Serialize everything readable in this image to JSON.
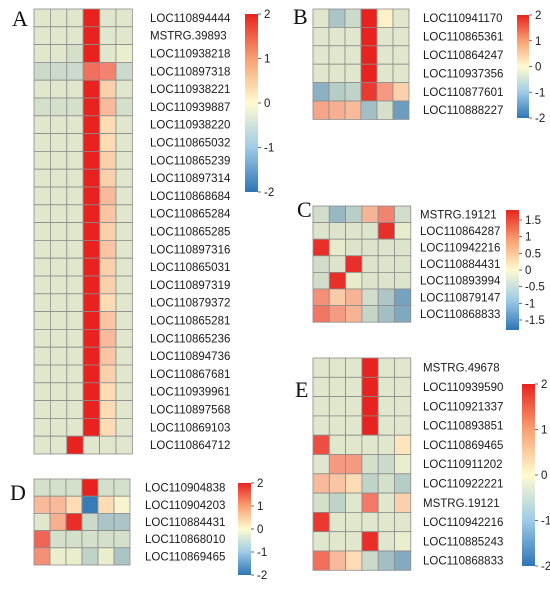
{
  "figure": {
    "type": "heatmap",
    "color_scale": {
      "low": "#2e75b6",
      "mid": "#fffbd0",
      "high": "#e8231f"
    }
  },
  "chart_data": [
    {
      "panel": "A",
      "type": "heatmap",
      "rows": [
        "LOC110894444",
        "MSTRG.39893",
        "LOC110938218",
        "LOC110897318",
        "LOC110938221",
        "LOC110939887",
        "LOC110938220",
        "LOC110865032",
        "LOC110865239",
        "LOC110897314",
        "LOC110868684",
        "LOC110865284",
        "LOC110865285",
        "LOC110897316",
        "LOC110865031",
        "LOC110897319",
        "LOC110879372",
        "LOC110865281",
        "LOC110865236",
        "LOC110894736",
        "LOC110867681",
        "LOC110939961",
        "LOC110897568",
        "LOC110869103",
        "LOC110864712"
      ],
      "values": [
        [
          -0.3,
          -0.3,
          -0.3,
          2.0,
          -0.3,
          -0.3
        ],
        [
          -0.3,
          -0.3,
          -0.3,
          2.0,
          -0.3,
          -0.3
        ],
        [
          -0.3,
          -0.3,
          -0.4,
          2.0,
          -0.3,
          -0.2
        ],
        [
          -0.5,
          -0.5,
          -0.5,
          1.3,
          1.1,
          -0.5
        ],
        [
          -0.3,
          -0.3,
          -0.3,
          2.0,
          0.4,
          -0.3
        ],
        [
          -0.4,
          -0.4,
          -0.4,
          2.0,
          0.6,
          -0.4
        ],
        [
          -0.3,
          -0.3,
          -0.3,
          2.0,
          0.3,
          -0.3
        ],
        [
          -0.3,
          -0.3,
          -0.3,
          2.0,
          0.3,
          -0.3
        ],
        [
          -0.3,
          -0.3,
          -0.3,
          2.0,
          0.4,
          -0.3
        ],
        [
          -0.3,
          -0.3,
          -0.3,
          2.0,
          0.4,
          -0.3
        ],
        [
          -0.3,
          -0.3,
          -0.3,
          2.0,
          0.6,
          -0.3
        ],
        [
          -0.3,
          -0.3,
          -0.3,
          2.0,
          0.5,
          -0.3
        ],
        [
          -0.3,
          -0.3,
          -0.3,
          2.0,
          0.4,
          -0.3
        ],
        [
          -0.3,
          -0.3,
          -0.3,
          2.0,
          0.5,
          -0.3
        ],
        [
          -0.3,
          -0.3,
          -0.3,
          2.0,
          0.4,
          -0.3
        ],
        [
          -0.3,
          -0.3,
          -0.3,
          2.0,
          0.4,
          -0.3
        ],
        [
          -0.3,
          -0.3,
          -0.3,
          2.0,
          0.3,
          -0.3
        ],
        [
          -0.3,
          -0.3,
          -0.3,
          2.0,
          0.5,
          -0.3
        ],
        [
          -0.3,
          -0.3,
          -0.3,
          2.0,
          0.6,
          -0.3
        ],
        [
          -0.3,
          -0.3,
          -0.3,
          2.0,
          0.5,
          -0.3
        ],
        [
          -0.3,
          -0.3,
          -0.3,
          2.0,
          0.4,
          -0.3
        ],
        [
          -0.3,
          -0.3,
          -0.3,
          2.0,
          0.3,
          -0.3
        ],
        [
          -0.3,
          -0.3,
          -0.3,
          2.0,
          0.3,
          -0.3
        ],
        [
          -0.3,
          -0.3,
          -0.3,
          2.0,
          0.3,
          -0.3
        ],
        [
          -0.3,
          -0.3,
          2.0,
          -0.3,
          -0.3,
          -0.3
        ]
      ],
      "legend": {
        "ticks": [
          2,
          1,
          0,
          -1,
          -2
        ],
        "range": [
          -2,
          2
        ]
      }
    },
    {
      "panel": "B",
      "type": "heatmap",
      "rows": [
        "LOC110941170",
        "LOC110865361",
        "LOC110864247",
        "LOC110937356",
        "LOC110877601",
        "LOC110888227"
      ],
      "values": [
        [
          -0.3,
          -0.8,
          -0.5,
          2.0,
          0.1,
          -0.3
        ],
        [
          -0.3,
          -0.3,
          -0.3,
          2.0,
          -0.3,
          -0.3
        ],
        [
          -0.3,
          -0.3,
          -0.3,
          2.0,
          -0.3,
          -0.3
        ],
        [
          -0.3,
          -0.3,
          -0.3,
          2.0,
          -0.3,
          -0.3
        ],
        [
          -1.1,
          -0.7,
          -0.6,
          1.8,
          0.9,
          0.4
        ],
        [
          0.8,
          0.7,
          0.6,
          -0.9,
          -0.4,
          -1.4
        ]
      ],
      "legend": {
        "ticks": [
          2,
          1,
          0,
          -1,
          -2
        ],
        "range": [
          -2,
          2
        ]
      }
    },
    {
      "panel": "C",
      "type": "heatmap",
      "rows": [
        "MSTRG.19121",
        "LOC110864287",
        "LOC110942216",
        "LOC110884431",
        "LOC110893994",
        "LOC110879147",
        "LOC110868833"
      ],
      "values": [
        [
          -0.4,
          -0.9,
          -0.6,
          0.6,
          1.0,
          -0.4
        ],
        [
          -0.3,
          -0.3,
          -0.3,
          -0.3,
          1.7,
          -0.2
        ],
        [
          1.7,
          -0.2,
          -0.3,
          -0.3,
          -0.3,
          -0.3
        ],
        [
          -0.4,
          -0.3,
          1.7,
          -0.3,
          -0.3,
          -0.3
        ],
        [
          -0.4,
          1.7,
          -0.2,
          -0.3,
          -0.3,
          -0.3
        ],
        [
          0.9,
          0.4,
          0.6,
          -0.4,
          -0.7,
          -1.2
        ],
        [
          1.1,
          0.8,
          0.6,
          -0.5,
          -0.8,
          -1.1
        ]
      ],
      "legend": {
        "ticks": [
          1.5,
          1,
          0.5,
          0,
          -0.5,
          -1,
          -1.5
        ],
        "range": [
          -1.8,
          1.8
        ]
      }
    },
    {
      "panel": "D",
      "type": "heatmap",
      "rows": [
        "LOC110904838",
        "LOC110904203",
        "LOC110884431",
        "LOC110868010",
        "LOC110869465"
      ],
      "values": [
        [
          -0.4,
          -0.4,
          -0.4,
          2.0,
          -0.4,
          -0.4
        ],
        [
          0.6,
          0.6,
          0.3,
          -1.9,
          0.3,
          -0.1
        ],
        [
          -0.3,
          0.7,
          1.9,
          -0.5,
          -0.8,
          -0.8
        ],
        [
          1.4,
          -0.4,
          -0.4,
          -0.4,
          -0.4,
          -0.4
        ],
        [
          1.0,
          -0.2,
          -0.2,
          -0.6,
          -0.2,
          -0.8
        ]
      ],
      "legend": {
        "ticks": [
          2,
          1,
          0,
          -1,
          -2
        ],
        "range": [
          -2,
          2
        ]
      }
    },
    {
      "panel": "E",
      "type": "heatmap",
      "rows": [
        "MSTRG.49678",
        "LOC110939590",
        "LOC110921337",
        "LOC110893851",
        "LOC110869465",
        "LOC110911202",
        "LOC110922221",
        "MSTRG.19121",
        "LOC110942216",
        "LOC110885243",
        "LOC110868833"
      ],
      "values": [
        [
          -0.3,
          -0.3,
          -0.3,
          2.0,
          -0.3,
          -0.3
        ],
        [
          -0.3,
          -0.3,
          -0.3,
          2.0,
          -0.3,
          -0.3
        ],
        [
          -0.3,
          -0.3,
          -0.3,
          2.0,
          -0.3,
          -0.3
        ],
        [
          -0.3,
          -0.3,
          -0.3,
          2.0,
          -0.3,
          -0.3
        ],
        [
          1.6,
          -0.3,
          -0.3,
          -0.3,
          -0.3,
          0.2
        ],
        [
          -0.3,
          0.9,
          0.9,
          -0.4,
          -0.5,
          -0.2
        ],
        [
          0.6,
          0.5,
          0.3,
          -0.6,
          -0.4,
          -0.7
        ],
        [
          -0.4,
          -0.6,
          -0.3,
          1.2,
          -0.3,
          0.4
        ],
        [
          1.8,
          -0.3,
          -0.3,
          -0.3,
          -0.3,
          -0.3
        ],
        [
          -0.3,
          -0.3,
          -0.3,
          1.9,
          -0.3,
          -0.2
        ],
        [
          1.3,
          0.6,
          0.3,
          -0.5,
          -0.9,
          -1.2
        ]
      ],
      "legend": {
        "ticks": [
          2,
          1,
          0,
          -1,
          -2
        ],
        "range": [
          -2,
          2
        ]
      }
    }
  ]
}
